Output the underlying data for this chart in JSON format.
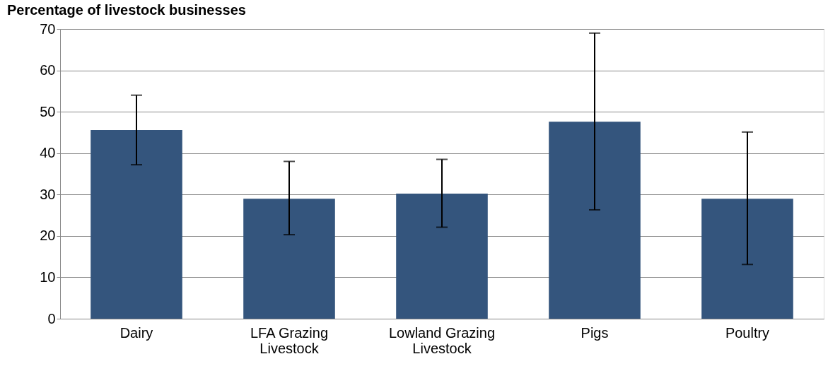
{
  "chart_data": {
    "type": "bar",
    "ylabel": "Percentage of livestock businesses",
    "categories": [
      "Dairy",
      "LFA Grazing Livestock",
      "Lowland Grazing Livestock",
      "Pigs",
      "Poultry"
    ],
    "values": [
      45.6,
      29.0,
      30.2,
      47.6,
      29.0
    ],
    "errors": [
      [
        37.2,
        54.0
      ],
      [
        20.3,
        38.0
      ],
      [
        22.1,
        38.5
      ],
      [
        26.3,
        69.0
      ],
      [
        13.1,
        45.1
      ]
    ],
    "color": "#34557d",
    "ylim": [
      0,
      70
    ],
    "yticks": [
      0,
      10,
      20,
      30,
      40,
      50,
      60,
      70
    ],
    "grid": "y"
  }
}
